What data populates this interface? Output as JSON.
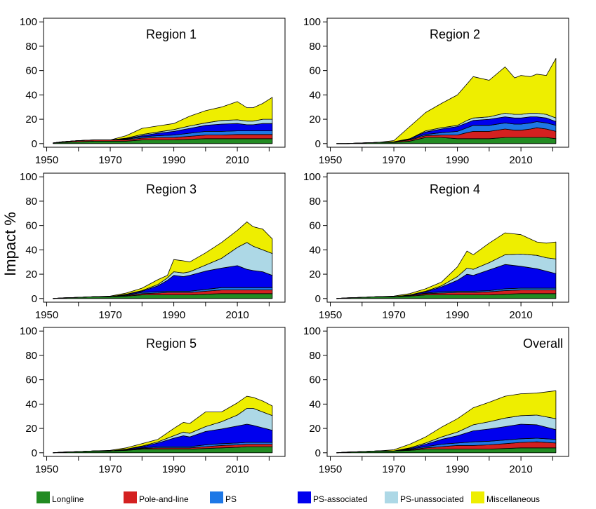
{
  "figure": {
    "ylabel": "Impact %"
  },
  "legend": [
    {
      "name": "Longline",
      "color": "#228B22"
    },
    {
      "name": "Pole-and-line",
      "color": "#D42020"
    },
    {
      "name": "PS",
      "color": "#1E78E6"
    },
    {
      "name": "PS-associated",
      "color": "#0000EE"
    },
    {
      "name": "PS-unassociated",
      "color": "#ADD8E6"
    },
    {
      "name": "Miscellaneous",
      "color": "#EEEE00"
    }
  ],
  "chart_data": [
    {
      "type": "area",
      "title": "Region  1",
      "x": [
        1952,
        1955,
        1960,
        1965,
        1970,
        1975,
        1980,
        1985,
        1990,
        1995,
        2000,
        2005,
        2010,
        2013,
        2015,
        2018,
        2021
      ],
      "xticks": [
        1950,
        1970,
        1990,
        2010
      ],
      "yticks": [
        0,
        20,
        40,
        60,
        80,
        100
      ],
      "xlim": [
        1949,
        2025
      ],
      "ylim": [
        -3,
        103
      ],
      "series": [
        {
          "name": "Longline",
          "values": [
            0.5,
            1,
            1.5,
            2,
            2,
            2,
            3,
            3,
            3,
            3.5,
            4,
            4,
            4,
            4,
            4,
            4,
            4
          ]
        },
        {
          "name": "Pole-and-line",
          "values": [
            0,
            0.5,
            1,
            1,
            1,
            1,
            1.5,
            2,
            2,
            2.5,
            3,
            3,
            3.5,
            3.5,
            3.5,
            3.5,
            3.5
          ]
        },
        {
          "name": "PS",
          "values": [
            0,
            0,
            0,
            0,
            0,
            0.5,
            1,
            1.5,
            2,
            2.5,
            3,
            3,
            3,
            3,
            3,
            3,
            3
          ]
        },
        {
          "name": "PS-associated",
          "values": [
            0,
            0,
            0,
            0,
            0,
            0.5,
            1,
            2,
            3,
            4,
            5,
            6,
            6,
            5,
            5,
            6,
            6
          ]
        },
        {
          "name": "PS-unassociated",
          "values": [
            0,
            0,
            0,
            0,
            0,
            0.5,
            1,
            1,
            1.5,
            2,
            2,
            3,
            3,
            3,
            3,
            3.5,
            3.5
          ]
        },
        {
          "name": "Miscellaneous",
          "values": [
            0,
            0,
            0,
            0,
            0,
            2,
            5,
            5,
            5,
            8,
            10,
            11,
            15,
            11,
            11,
            13,
            18
          ]
        }
      ]
    },
    {
      "type": "area",
      "title": "Region  2",
      "x": [
        1952,
        1955,
        1960,
        1965,
        1970,
        1975,
        1980,
        1985,
        1990,
        1993,
        1995,
        2000,
        2005,
        2008,
        2010,
        2013,
        2015,
        2018,
        2021
      ],
      "xticks": [
        1950,
        1970,
        1990,
        2010
      ],
      "yticks": [
        0,
        20,
        40,
        60,
        80,
        100
      ],
      "xlim": [
        1949,
        2025
      ],
      "ylim": [
        -3,
        103
      ],
      "series": [
        {
          "name": "Longline",
          "values": [
            0,
            0,
            0.5,
            1,
            1,
            2,
            5,
            5,
            4,
            4,
            4,
            4,
            5,
            5,
            5,
            5,
            5,
            5,
            4
          ]
        },
        {
          "name": "Pole-and-line",
          "values": [
            0,
            0,
            0,
            0,
            0.5,
            1,
            1.5,
            2,
            3,
            5,
            6,
            6,
            7,
            6,
            6,
            7,
            8,
            7,
            6
          ]
        },
        {
          "name": "PS",
          "values": [
            0,
            0,
            0,
            0,
            0,
            0.5,
            1,
            2,
            3,
            4,
            5,
            5,
            5,
            5,
            5,
            5,
            5,
            5,
            5
          ]
        },
        {
          "name": "PS-associated",
          "values": [
            0,
            0,
            0,
            0,
            0,
            0.5,
            2,
            3,
            4,
            4,
            4,
            5,
            5,
            5,
            5,
            5,
            4,
            4,
            3
          ]
        },
        {
          "name": "PS-unassociated",
          "values": [
            0,
            0,
            0,
            0,
            0,
            0,
            1,
            1,
            1,
            2,
            2,
            2,
            3,
            3,
            3,
            3,
            3,
            3,
            3
          ]
        },
        {
          "name": "Miscellaneous",
          "values": [
            0,
            0,
            0,
            0,
            1,
            10,
            15,
            20,
            25,
            30,
            34,
            30,
            38,
            30,
            32,
            30,
            32,
            32,
            49
          ]
        }
      ]
    },
    {
      "type": "area",
      "title": "Region  3",
      "x": [
        1952,
        1955,
        1960,
        1965,
        1970,
        1975,
        1980,
        1985,
        1988,
        1990,
        1993,
        1995,
        2000,
        2005,
        2010,
        2013,
        2015,
        2018,
        2021
      ],
      "xticks": [
        1950,
        1970,
        1990,
        2010
      ],
      "yticks": [
        0,
        20,
        40,
        60,
        80,
        100
      ],
      "xlim": [
        1949,
        2025
      ],
      "ylim": [
        -3,
        103
      ],
      "series": [
        {
          "name": "Longline",
          "values": [
            0,
            0.5,
            1,
            1.5,
            1.5,
            2,
            3,
            3,
            3,
            3,
            3,
            3,
            3.5,
            4,
            4,
            4,
            4,
            4,
            4
          ]
        },
        {
          "name": "Pole-and-line",
          "values": [
            0,
            0,
            0,
            0,
            0,
            0.5,
            1,
            1.5,
            2,
            2,
            2,
            2,
            2.5,
            3,
            3,
            3,
            3,
            3,
            3
          ]
        },
        {
          "name": "PS",
          "values": [
            0,
            0,
            0,
            0,
            0,
            0.5,
            1,
            1,
            1,
            1,
            1,
            1,
            1.5,
            2,
            2,
            2,
            2,
            2,
            2
          ]
        },
        {
          "name": "PS-associated",
          "values": [
            0,
            0,
            0,
            0,
            0,
            0.5,
            1,
            5,
            9,
            13,
            12,
            13,
            15,
            16,
            18,
            15,
            14,
            13,
            10
          ]
        },
        {
          "name": "PS-unassociated",
          "values": [
            0,
            0,
            0,
            0,
            0,
            0,
            0.5,
            1,
            2,
            3,
            3,
            3,
            5,
            8,
            15,
            22,
            20,
            18,
            18
          ]
        },
        {
          "name": "Miscellaneous",
          "values": [
            0,
            0,
            0,
            0,
            0.5,
            1,
            2,
            4,
            2,
            10,
            10,
            8,
            10,
            13,
            14,
            17,
            16,
            17,
            12
          ]
        }
      ]
    },
    {
      "type": "area",
      "title": "Region  4",
      "x": [
        1952,
        1955,
        1960,
        1965,
        1970,
        1975,
        1980,
        1985,
        1990,
        1993,
        1995,
        2000,
        2005,
        2010,
        2015,
        2018,
        2021
      ],
      "xticks": [
        1950,
        1970,
        1990,
        2010
      ],
      "yticks": [
        0,
        20,
        40,
        60,
        80,
        100
      ],
      "xlim": [
        1949,
        2025
      ],
      "ylim": [
        -3,
        103
      ],
      "series": [
        {
          "name": "Longline",
          "values": [
            0,
            0.5,
            1,
            1.5,
            1.5,
            2,
            3,
            3,
            3,
            3,
            3,
            3,
            3.5,
            4,
            4,
            4,
            4
          ]
        },
        {
          "name": "Pole-and-line",
          "values": [
            0,
            0,
            0,
            0,
            0,
            0.5,
            1,
            1.5,
            2,
            2,
            2,
            2.5,
            3,
            3,
            3,
            3,
            3
          ]
        },
        {
          "name": "PS",
          "values": [
            0,
            0,
            0,
            0,
            0,
            0,
            0.5,
            1,
            1,
            1,
            1,
            1,
            1.5,
            1.5,
            1.5,
            1.5,
            1.5
          ]
        },
        {
          "name": "PS-associated",
          "values": [
            0,
            0,
            0,
            0,
            0,
            0.5,
            1,
            4,
            9,
            14,
            13,
            17,
            20,
            18,
            16,
            14,
            12
          ]
        },
        {
          "name": "PS-unassociated",
          "values": [
            0,
            0,
            0,
            0,
            0,
            0,
            0.5,
            1,
            3,
            5,
            5,
            6,
            8,
            10,
            11,
            11,
            12
          ]
        },
        {
          "name": "Miscellaneous",
          "values": [
            0,
            0,
            0,
            0,
            0.5,
            1,
            2,
            3,
            8,
            14,
            12,
            16,
            18,
            16,
            11,
            12,
            14
          ]
        }
      ]
    },
    {
      "type": "area",
      "title": "Region  5",
      "x": [
        1952,
        1955,
        1960,
        1965,
        1970,
        1975,
        1980,
        1985,
        1990,
        1993,
        1995,
        2000,
        2005,
        2010,
        2013,
        2015,
        2018,
        2021
      ],
      "xticks": [
        1950,
        1970,
        1990,
        2010
      ],
      "yticks": [
        0,
        20,
        40,
        60,
        80,
        100
      ],
      "xlim": [
        1949,
        2025
      ],
      "ylim": [
        -3,
        103
      ],
      "series": [
        {
          "name": "Longline",
          "values": [
            0,
            0.5,
            1,
            1.5,
            1.5,
            2,
            3,
            3,
            3,
            3,
            3,
            3.5,
            4,
            4.5,
            5,
            5,
            5,
            5
          ]
        },
        {
          "name": "Pole-and-line",
          "values": [
            0,
            0,
            0,
            0,
            0,
            0.5,
            0.5,
            1,
            1,
            1,
            1,
            1.5,
            2,
            2,
            2,
            2,
            2,
            2
          ]
        },
        {
          "name": "PS",
          "values": [
            0,
            0,
            0,
            0,
            0,
            0,
            0.5,
            1,
            1,
            1,
            1,
            1.5,
            1.5,
            1.5,
            1.5,
            1.5,
            1.5,
            1.5
          ]
        },
        {
          "name": "PS-associated",
          "values": [
            0,
            0,
            0,
            0,
            0,
            0.5,
            1,
            3,
            7,
            9,
            8,
            11,
            12,
            14,
            15,
            14,
            12,
            10
          ]
        },
        {
          "name": "PS-unassociated",
          "values": [
            0,
            0,
            0,
            0,
            0,
            0,
            0.5,
            1,
            2,
            3,
            3,
            4,
            6,
            9,
            13,
            14,
            13,
            12
          ]
        },
        {
          "name": "Miscellaneous",
          "values": [
            0,
            0,
            0,
            0,
            0.5,
            1,
            2,
            2,
            6,
            8,
            8,
            12,
            8,
            10,
            10,
            9,
            9,
            8
          ]
        }
      ]
    },
    {
      "type": "area",
      "title": "Overall",
      "x": [
        1952,
        1955,
        1960,
        1965,
        1970,
        1975,
        1980,
        1985,
        1990,
        1995,
        2000,
        2005,
        2010,
        2015,
        2021
      ],
      "xticks": [
        1950,
        1970,
        1990,
        2010
      ],
      "yticks": [
        0,
        20,
        40,
        60,
        80,
        100
      ],
      "xlim": [
        1949,
        2025
      ],
      "ylim": [
        -3,
        103
      ],
      "series": [
        {
          "name": "Longline",
          "values": [
            0,
            0.5,
            1,
            1.5,
            1.5,
            2,
            3,
            3,
            3,
            3,
            3,
            3.5,
            4,
            4,
            4
          ]
        },
        {
          "name": "Pole-and-line",
          "values": [
            0,
            0,
            0,
            0,
            0,
            0.5,
            1,
            2,
            3,
            3,
            3.5,
            4,
            4.5,
            5,
            4
          ]
        },
        {
          "name": "PS",
          "values": [
            0,
            0,
            0,
            0,
            0,
            0.5,
            1,
            2,
            2,
            3,
            3,
            3,
            3,
            3,
            3
          ]
        },
        {
          "name": "PS-associated",
          "values": [
            0,
            0,
            0,
            0,
            0,
            0.5,
            2,
            4,
            6,
            9,
            10,
            11,
            12,
            11,
            8
          ]
        },
        {
          "name": "PS-unassociated",
          "values": [
            0,
            0,
            0,
            0,
            0,
            0.5,
            1,
            2,
            3,
            5,
            6,
            7,
            7,
            8,
            9
          ]
        },
        {
          "name": "Miscellaneous",
          "values": [
            0,
            0,
            0,
            0,
            1,
            3,
            5,
            8,
            11,
            14,
            16,
            18,
            18,
            18,
            23
          ]
        }
      ]
    }
  ]
}
